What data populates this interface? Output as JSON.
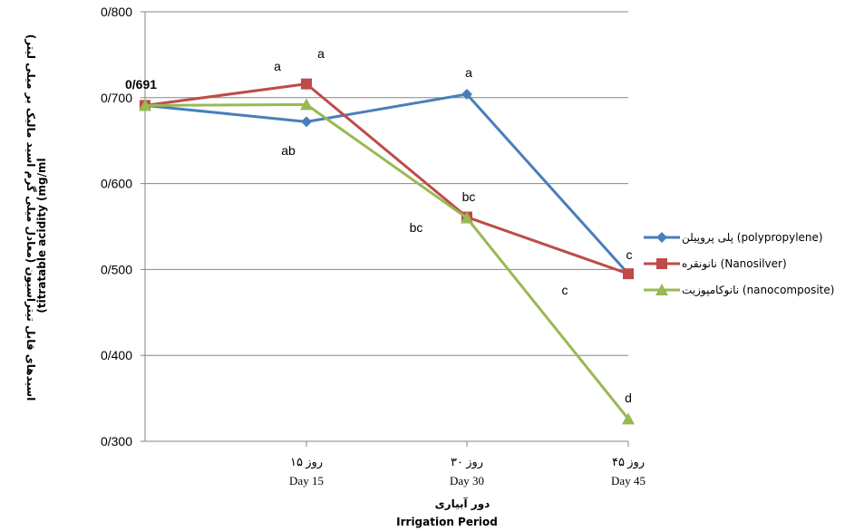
{
  "chart_data": {
    "type": "line",
    "title": "",
    "x_labels": [
      {
        "persian": "",
        "english": ""
      },
      {
        "persian": "روز ۱۵",
        "english": "Day 15"
      },
      {
        "persian": "روز ۳۰",
        "english": "Day 30"
      },
      {
        "persian": "روز ۴۵",
        "english": "Day 45"
      }
    ],
    "xlabel": {
      "persian": "دور آبیاری",
      "english": "Irrigation Period"
    },
    "ylabel": {
      "persian": "اسیدهای قابل تیتراسیون (معادل میلی گرم اسید مالیک بر میلی لیتر)",
      "english": "(titratable acidity (mg/ml"
    },
    "ylim": [
      0.3,
      0.8
    ],
    "yticks": [
      "0/300",
      "0/400",
      "0/500",
      "0/600",
      "0/700",
      "0/800"
    ],
    "grid": true,
    "legend_position": "right",
    "series": [
      {
        "name": "پلی پروپیلن (polypropylene)",
        "color": "#4a7ebb",
        "marker": "diamond",
        "values": [
          0.691,
          0.672,
          0.704,
          0.495
        ]
      },
      {
        "name": "نانونقره (Nanosilver)",
        "color": "#be4b48",
        "marker": "square",
        "values": [
          0.691,
          0.716,
          0.561,
          0.495
        ]
      },
      {
        "name": "نانوکامپوزیت (nanocomposite)",
        "color": "#98b954",
        "marker": "triangle",
        "values": [
          0.691,
          0.692,
          0.56,
          0.326
        ]
      }
    ],
    "annotations": [
      "0/691",
      "a",
      "a",
      "ab",
      "a",
      "bc",
      "bc",
      "c",
      "c",
      "d"
    ]
  }
}
